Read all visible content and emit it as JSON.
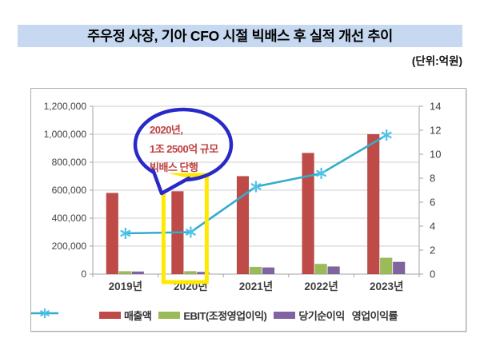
{
  "header": {
    "title": "주우정 사장, 기아 CFO 시절 빅배스 후 실적 개선 추이",
    "unit": "(단위:억원)"
  },
  "colors": {
    "title_bg": "#C6D9F1",
    "bar_revenue": "#BE4B48",
    "bar_ebit": "#9BBB59",
    "bar_net_income": "#8064A2",
    "line_margin": "#33ADCB",
    "line_marker": "#4EC2E8",
    "gridline": "#CFCFCF",
    "axis": "#A3A3A3",
    "tick_text": "#3F3F3F",
    "bubble_stroke": "#2929C8",
    "bubble_text": "#C04040",
    "highlight_box": "#FFE900"
  },
  "annotation": {
    "lines": [
      "2020년,",
      "1조 2500억 규모",
      "빅배스 단행"
    ],
    "highlight_category": "2020년"
  },
  "chart_data": {
    "type": "bar",
    "subtype": "combo-bar-line",
    "categories": [
      "2019년",
      "2020년",
      "2021년",
      "2022년",
      "2023년"
    ],
    "series": [
      {
        "name": "매출액",
        "type": "bar",
        "axis": "left",
        "values": [
          580000,
          592000,
          700000,
          866000,
          1000000
        ]
      },
      {
        "name": "EBIT(조정영업이익)",
        "type": "bar",
        "axis": "left",
        "values": [
          20000,
          20000,
          51000,
          72000,
          116000
        ]
      },
      {
        "name": "당기순이익",
        "type": "bar",
        "axis": "left",
        "values": [
          18000,
          15000,
          47000,
          54000,
          87000
        ]
      },
      {
        "name": "영업이익률",
        "type": "line",
        "axis": "right",
        "values": [
          3.4,
          3.5,
          7.3,
          8.4,
          11.6
        ]
      }
    ],
    "left_axis": {
      "min": 0,
      "max": 1200000,
      "step": 200000
    },
    "right_axis": {
      "min": 0,
      "max": 14,
      "step": 2
    },
    "grid": true,
    "legend_position": "bottom"
  }
}
